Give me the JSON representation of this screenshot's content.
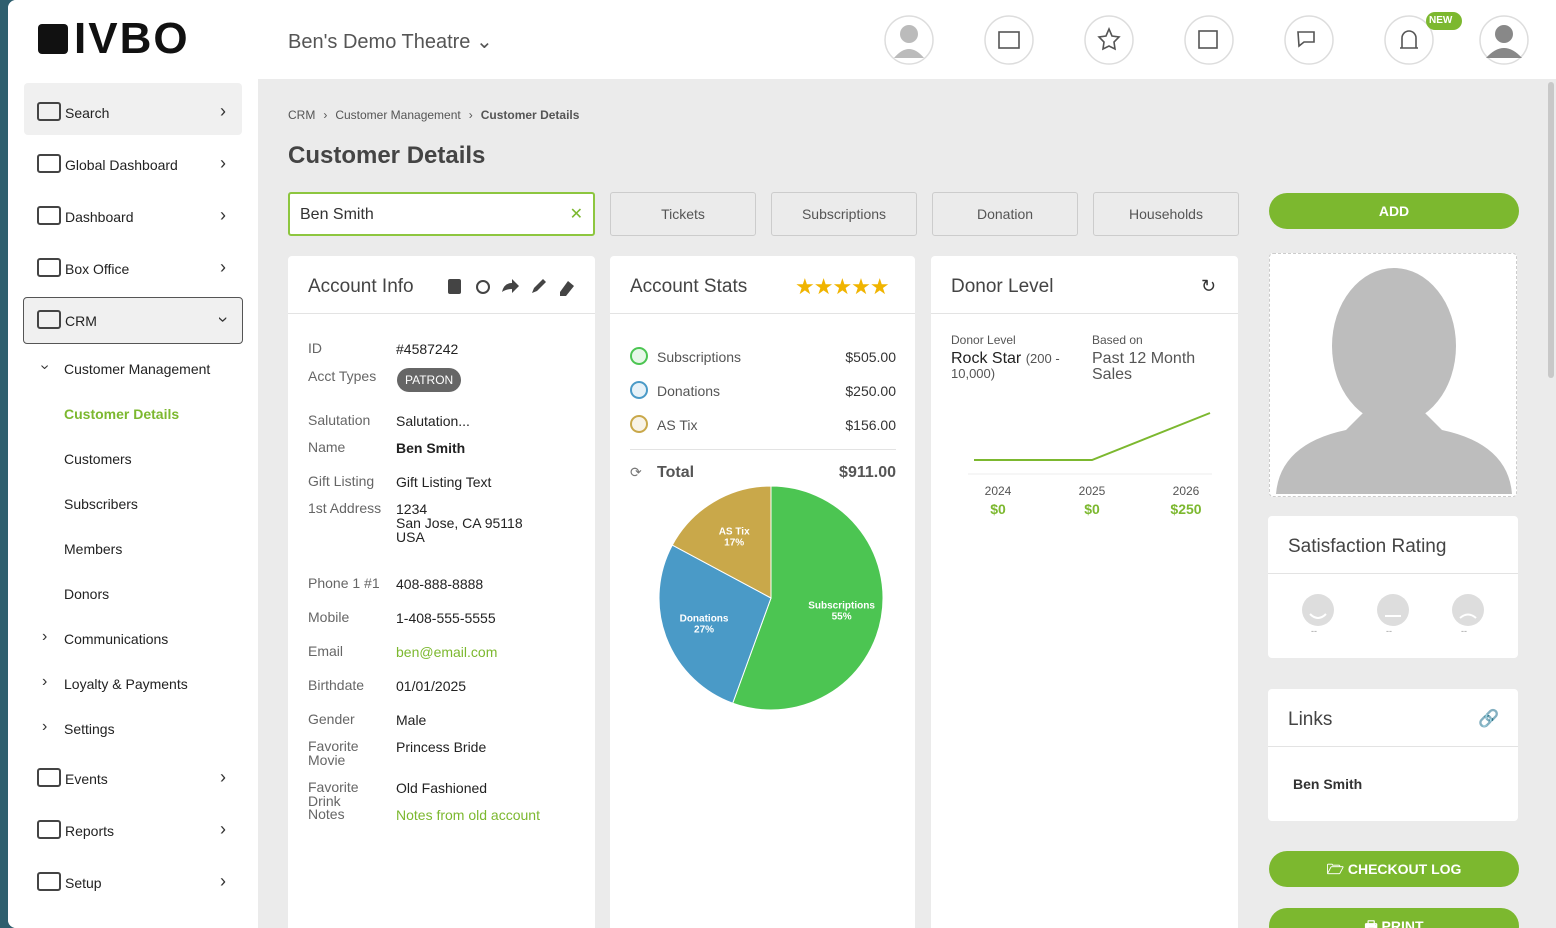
{
  "header": {
    "logo": "IVBO",
    "venue": "Ben's Demo Theatre",
    "badge": "NEW"
  },
  "sidebar": {
    "items": [
      "Search",
      "Global Dashboard",
      "Dashboard",
      "Box Office",
      "CRM",
      "Customer Management",
      "Customer Details",
      "Customers",
      "Subscribers",
      "Members",
      "Donors",
      "Communications",
      "Loyalty & Payments",
      "Settings",
      "Events",
      "Reports",
      "Setup"
    ]
  },
  "breadcrumb": [
    "CRM",
    "Customer Management",
    "Customer Details"
  ],
  "page_title": "Customer Details",
  "search_value": "Ben Smith",
  "tabs": [
    "Tickets",
    "Subscriptions",
    "Donation",
    "Households"
  ],
  "add_button": "ADD",
  "account_info": {
    "title": "Account Info",
    "fields": [
      {
        "label": "ID",
        "value": "#4587242"
      },
      {
        "label": "Acct Types",
        "value": "PATRON"
      },
      {
        "label": "Salutation",
        "value": "Salutation..."
      },
      {
        "label": "Name",
        "value": "Ben Smith"
      },
      {
        "label": "Gift Listing",
        "value": "Gift Listing Text"
      },
      {
        "label": "1st Address",
        "value": [
          "1234",
          "San Jose, CA 95118",
          "USA"
        ]
      },
      {
        "label": "Phone 1 #1",
        "value": "408-888-8888"
      },
      {
        "label": "Mobile",
        "value": "1-408-555-5555"
      },
      {
        "label": "Email",
        "value": "ben@email.com"
      },
      {
        "label": "Birthdate",
        "value": "01/01/2025"
      },
      {
        "label": "Gender",
        "value": "Male"
      },
      {
        "label": "Favorite Movie",
        "value": "Princess Bride"
      },
      {
        "label": "Favorite Drink",
        "value": "Old Fashioned"
      },
      {
        "label": "Notes",
        "value": "Notes from old account"
      }
    ]
  },
  "account_stats": {
    "title": "Account Stats",
    "items": [
      {
        "name": "Subscriptions",
        "amount": "$505.00"
      },
      {
        "name": "Donations",
        "amount": "$250.00"
      },
      {
        "name": "AS Tix",
        "amount": "$156.00"
      }
    ],
    "total_label": "Total",
    "total": "$911.00",
    "pie": {
      "type": "pie",
      "categories": [
        "Subscriptions",
        "Donations",
        "AS Tix"
      ],
      "values": [
        55,
        27,
        17
      ],
      "value_labels": [
        "55%",
        "27%",
        "17%"
      ],
      "colors": [
        "#4cc552",
        "#4a9ac7",
        "#c9a84a"
      ]
    }
  },
  "donor_level": {
    "title": "Donor Level",
    "level_label": "Donor Level",
    "level": "Rock Star",
    "range": "(200 - 10,000)",
    "basis_label": "Based on",
    "basis": "Past 12 Month Sales",
    "chart": {
      "type": "line",
      "categories": [
        "2024",
        "2025",
        "2026"
      ],
      "values": [
        0,
        0,
        250
      ],
      "value_labels": [
        "$0",
        "$0",
        "$250"
      ],
      "color": "#7cb82f"
    }
  },
  "satisfaction": {
    "title": "Satisfaction Rating",
    "scores": [
      "--",
      "--",
      "--"
    ]
  },
  "links": {
    "title": "Links",
    "items": [
      "Ben Smith"
    ]
  },
  "buttons": {
    "checkout": "CHECKOUT LOG",
    "print": "PRINT"
  }
}
